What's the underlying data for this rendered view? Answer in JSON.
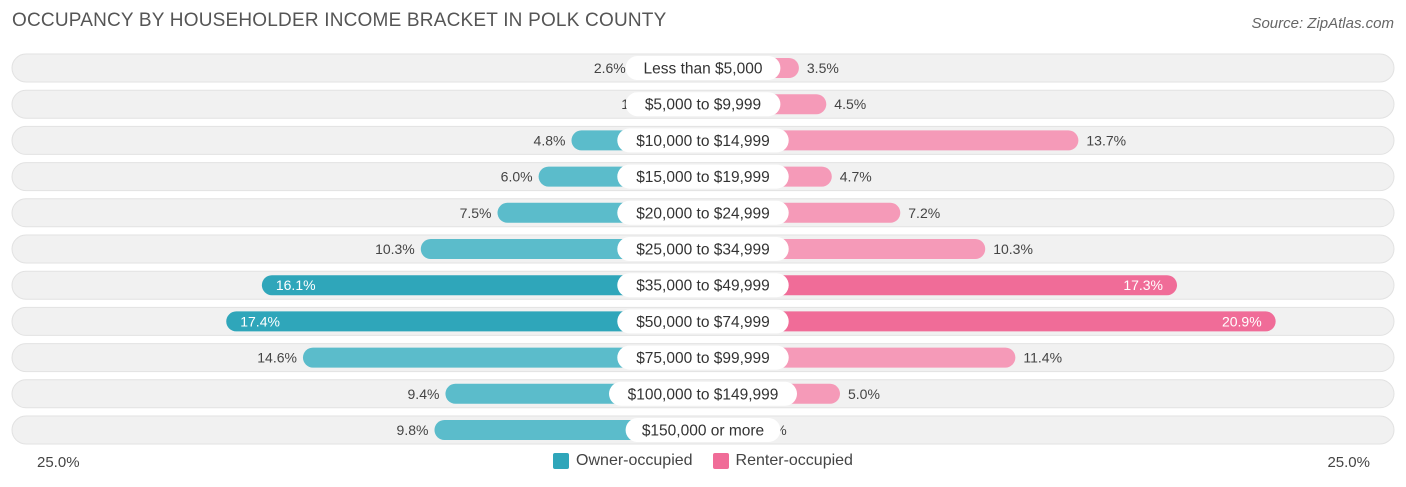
{
  "title": "OCCUPANCY BY HOUSEHOLDER INCOME BRACKET IN POLK COUNTY",
  "source": "Source: ZipAtlas.com",
  "axis": {
    "left_label": "25.0%",
    "right_label": "25.0%"
  },
  "colors": {
    "owner": "#5bbccb",
    "owner_strong": "#2fa6ba",
    "renter": "#f59ab8",
    "renter_strong": "#f06c98",
    "row_bg": "#f1f1f1"
  },
  "legend": {
    "owner": "Owner-occupied",
    "renter": "Renter-occupied"
  },
  "chart_data": {
    "type": "bar",
    "orientation": "horizontal-diverging",
    "xlim": [
      0,
      25
    ],
    "categories": [
      "Less than $5,000",
      "$5,000 to $9,999",
      "$10,000 to $14,999",
      "$15,000 to $19,999",
      "$20,000 to $24,999",
      "$25,000 to $34,999",
      "$35,000 to $49,999",
      "$50,000 to $74,999",
      "$75,000 to $99,999",
      "$100,000 to $149,999",
      "$150,000 or more"
    ],
    "series": [
      {
        "name": "Owner-occupied",
        "values": [
          2.6,
          1.6,
          4.8,
          6.0,
          7.5,
          10.3,
          16.1,
          17.4,
          14.6,
          9.4,
          9.8
        ],
        "labels": [
          "2.6%",
          "1.6%",
          "4.8%",
          "6.0%",
          "7.5%",
          "10.3%",
          "16.1%",
          "17.4%",
          "14.6%",
          "9.4%",
          "9.8%"
        ]
      },
      {
        "name": "Renter-occupied",
        "values": [
          3.5,
          4.5,
          13.7,
          4.7,
          7.2,
          10.3,
          17.3,
          20.9,
          11.4,
          5.0,
          1.6
        ],
        "labels": [
          "3.5%",
          "4.5%",
          "13.7%",
          "4.7%",
          "7.2%",
          "10.3%",
          "17.3%",
          "20.9%",
          "11.4%",
          "5.0%",
          "1.6%"
        ]
      }
    ]
  }
}
